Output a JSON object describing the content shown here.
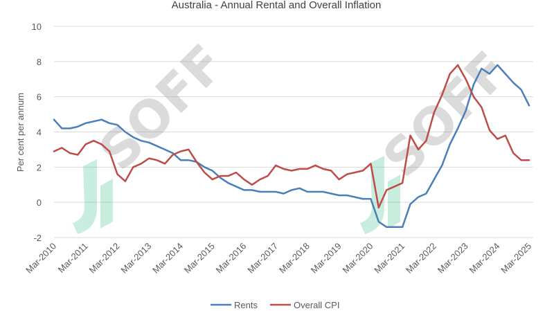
{
  "chart_data": {
    "type": "line",
    "title": "Australia - Annual Rental and Overall Inflation",
    "ylabel": "Per cent per annum",
    "xlabel": "",
    "ylim": [
      -2,
      10
    ],
    "yticks": [
      -2,
      0,
      2,
      4,
      6,
      8,
      10
    ],
    "xlim": [
      2010.17,
      2025.3
    ],
    "xticks": [
      {
        "x": 2010.17,
        "label": "Mar-2010"
      },
      {
        "x": 2011.17,
        "label": "Mar-2011"
      },
      {
        "x": 2012.17,
        "label": "Mar-2012"
      },
      {
        "x": 2013.17,
        "label": "Mar-2013"
      },
      {
        "x": 2014.17,
        "label": "Mar-2014"
      },
      {
        "x": 2015.17,
        "label": "Mar-2015"
      },
      {
        "x": 2016.17,
        "label": "Mar-2016"
      },
      {
        "x": 2017.17,
        "label": "Mar-2017"
      },
      {
        "x": 2018.17,
        "label": "Mar-2018"
      },
      {
        "x": 2019.17,
        "label": "Mar-2019"
      },
      {
        "x": 2020.17,
        "label": "Mar-2020"
      },
      {
        "x": 2021.17,
        "label": "Mar-2021"
      },
      {
        "x": 2022.17,
        "label": "Mar-2022"
      },
      {
        "x": 2023.17,
        "label": "Mar-2023"
      },
      {
        "x": 2024.17,
        "label": "Mar-2024"
      },
      {
        "x": 2025.17,
        "label": "Mar-2025"
      }
    ],
    "x": [
      2010.17,
      2010.42,
      2010.67,
      2010.92,
      2011.17,
      2011.42,
      2011.67,
      2011.92,
      2012.17,
      2012.42,
      2012.67,
      2012.92,
      2013.17,
      2013.42,
      2013.67,
      2013.92,
      2014.17,
      2014.42,
      2014.67,
      2014.92,
      2015.17,
      2015.42,
      2015.67,
      2015.92,
      2016.17,
      2016.42,
      2016.67,
      2016.92,
      2017.17,
      2017.42,
      2017.67,
      2017.92,
      2018.17,
      2018.42,
      2018.67,
      2018.92,
      2019.17,
      2019.42,
      2019.67,
      2019.92,
      2020.17,
      2020.42,
      2020.67,
      2020.92,
      2021.17,
      2021.42,
      2021.67,
      2021.92,
      2022.17,
      2022.42,
      2022.67,
      2022.92,
      2023.17,
      2023.42,
      2023.67,
      2023.92,
      2024.17,
      2024.42,
      2024.67,
      2024.92,
      2025.17
    ],
    "grid": true,
    "legend": "bottom",
    "series": [
      {
        "name": "Rents",
        "color": "#4a7ebb",
        "values": [
          4.7,
          4.2,
          4.2,
          4.3,
          4.5,
          4.6,
          4.7,
          4.5,
          4.4,
          4.0,
          3.7,
          3.5,
          3.4,
          3.2,
          3.0,
          2.8,
          2.4,
          2.4,
          2.3,
          2.0,
          1.8,
          1.4,
          1.1,
          0.9,
          0.7,
          0.7,
          0.6,
          0.6,
          0.6,
          0.5,
          0.7,
          0.8,
          0.6,
          0.6,
          0.6,
          0.5,
          0.4,
          0.4,
          0.3,
          0.2,
          0.2,
          -1.1,
          -1.4,
          -1.4,
          -1.4,
          -0.1,
          0.3,
          0.5,
          1.3,
          2.1,
          3.3,
          4.2,
          5.2,
          6.7,
          7.6,
          7.3,
          7.8,
          7.3,
          6.8,
          6.4,
          5.5
        ]
      },
      {
        "name": "Overall CPI",
        "color": "#be4b48",
        "values": [
          2.9,
          3.1,
          2.8,
          2.7,
          3.3,
          3.5,
          3.3,
          2.9,
          1.6,
          1.2,
          2.0,
          2.2,
          2.5,
          2.4,
          2.2,
          2.7,
          2.9,
          3.0,
          2.3,
          1.7,
          1.3,
          1.5,
          1.5,
          1.7,
          1.3,
          1.0,
          1.3,
          1.5,
          2.1,
          1.9,
          1.8,
          1.9,
          1.9,
          2.1,
          1.9,
          1.8,
          1.3,
          1.6,
          1.7,
          1.8,
          2.2,
          -0.3,
          0.7,
          0.9,
          1.1,
          3.8,
          3.0,
          3.5,
          5.1,
          6.1,
          7.3,
          7.8,
          7.0,
          6.0,
          5.4,
          4.1,
          3.6,
          3.8,
          2.8,
          2.4,
          2.4
        ]
      }
    ]
  },
  "watermark": {
    "text": "SOFF"
  }
}
